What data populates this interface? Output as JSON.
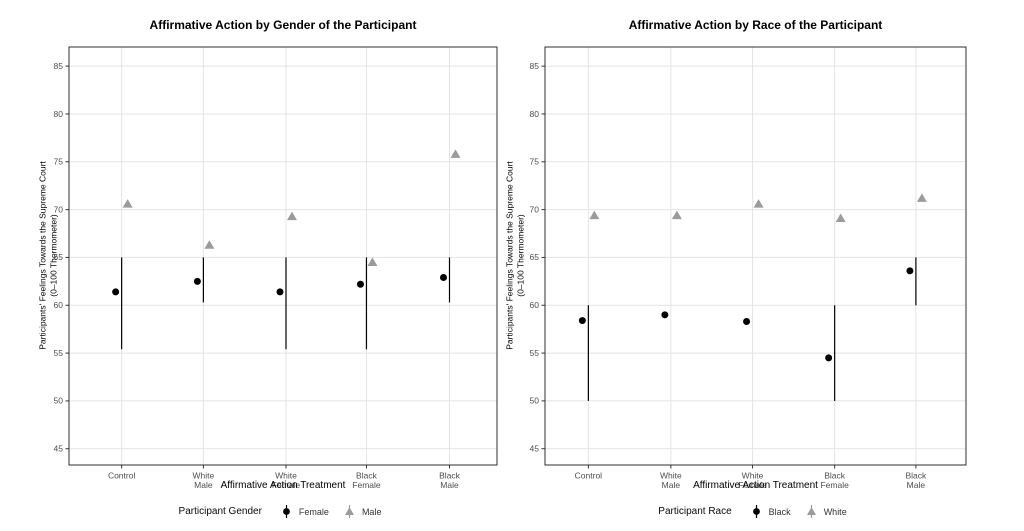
{
  "figure": {
    "background": "#ffffff"
  },
  "styles": {
    "grid_color": "#e4e4e4",
    "panel_border_color": "#2f2f2f",
    "tick_mark_color": "#333333",
    "tick_label_color": "#4d4d4d",
    "title_color": "#000000",
    "point_black": "#000000",
    "point_gray": "#9b9b9b",
    "range_line_color": "#000000"
  },
  "chart_data": [
    {
      "type": "scatter",
      "title": "Affirmative Action by Gender of the Participant",
      "xlabel": "Affirmative Action Treatment",
      "ylabel": "Participants' Feelings Towards the Supreme Court (0–100 Thermometer)",
      "ylabel_lines": [
        "Participants' Feelings Towards the Supreme Court",
        "(0–100 Thermometer)"
      ],
      "categories": [
        "Control",
        "White\nMale",
        "White\nFemale",
        "Black\nFemale",
        "Black\nMale"
      ],
      "ylim": [
        43.3,
        87.0
      ],
      "yticks": [
        45,
        50,
        55,
        60,
        65,
        70,
        75,
        80,
        85
      ],
      "grid": true,
      "legend_position": "bottom",
      "legend_title": "Participant Gender",
      "series": [
        {
          "name": "Female",
          "marker": "circle",
          "color": "#000000",
          "values": [
            61.4,
            62.5,
            61.4,
            62.2,
            62.9
          ]
        },
        {
          "name": "Male",
          "marker": "triangle",
          "color": "#9b9b9b",
          "values": [
            70.6,
            66.3,
            69.3,
            64.5,
            75.8
          ]
        }
      ],
      "range_lines": [
        {
          "category": "Control",
          "category_index": 0,
          "ymin": 55.4,
          "ymax": 65.0
        },
        {
          "category": "White Male",
          "category_index": 1,
          "ymin": 60.3,
          "ymax": 65.0
        },
        {
          "category": "White Female",
          "category_index": 2,
          "ymin": 55.4,
          "ymax": 65.0
        },
        {
          "category": "Black Female",
          "category_index": 3,
          "ymin": 55.4,
          "ymax": 65.0
        },
        {
          "category": "Black Male",
          "category_index": 4,
          "ymin": 60.3,
          "ymax": 65.0
        }
      ]
    },
    {
      "type": "scatter",
      "title": "Affirmative Action by Race of the Participant",
      "xlabel": "Affirmative Action Treatment",
      "ylabel": "Participants' Feelings Towards the Supreme Court (0–100 Thermometer)",
      "ylabel_lines": [
        "Participants' Feelings Towards the Supreme Court",
        "(0–100 Thermometer)"
      ],
      "categories": [
        "Control",
        "White\nMale",
        "White\nFemale",
        "Black\nFemale",
        "Black\nMale"
      ],
      "ylim": [
        43.3,
        87.0
      ],
      "yticks": [
        45,
        50,
        55,
        60,
        65,
        70,
        75,
        80,
        85
      ],
      "grid": true,
      "legend_position": "bottom",
      "legend_title": "Participant Race",
      "series": [
        {
          "name": "Black",
          "marker": "circle",
          "color": "#000000",
          "values": [
            58.4,
            59.0,
            58.3,
            54.5,
            63.6
          ]
        },
        {
          "name": "White",
          "marker": "triangle",
          "color": "#9b9b9b",
          "values": [
            69.4,
            69.4,
            70.6,
            69.1,
            71.2
          ]
        }
      ],
      "range_lines": [
        {
          "category": "Control",
          "category_index": 0,
          "ymin": 50.0,
          "ymax": 60.0
        },
        {
          "category": "Black Female",
          "category_index": 3,
          "ymin": 50.0,
          "ymax": 60.0
        },
        {
          "category": "Black Male",
          "category_index": 4,
          "ymin": 60.0,
          "ymax": 65.0
        }
      ]
    }
  ]
}
